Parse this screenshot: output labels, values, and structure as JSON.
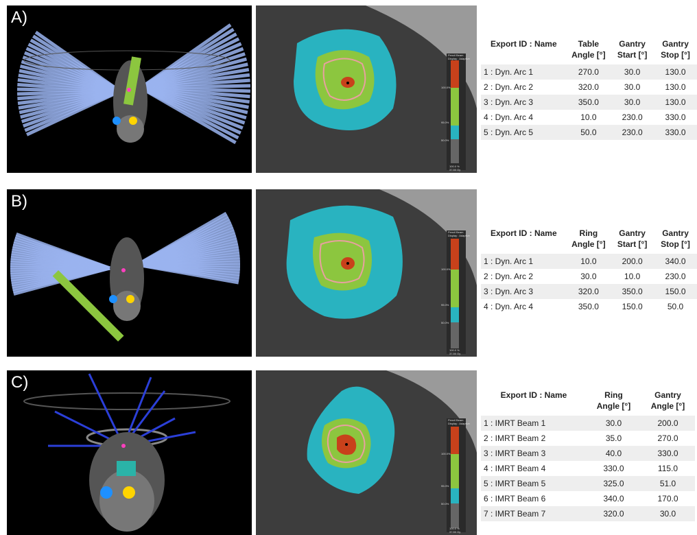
{
  "panels": [
    {
      "label": "A)",
      "table": {
        "headers": [
          {
            "line1": "Export ID : Name",
            "line2": ""
          },
          {
            "line1": "Table",
            "line2": "Angle [°]"
          },
          {
            "line1": "Gantry",
            "line2": "Start [°]"
          },
          {
            "line1": "Gantry",
            "line2": "Stop [°]"
          }
        ],
        "rows": [
          [
            "1 : Dyn. Arc 1",
            "270.0",
            "30.0",
            "130.0"
          ],
          [
            "2 : Dyn. Arc 2",
            "320.0",
            "30.0",
            "130.0"
          ],
          [
            "3 : Dyn. Arc 3",
            "350.0",
            "30.0",
            "130.0"
          ],
          [
            "4 : Dyn. Arc 4",
            "10.0",
            "230.0",
            "330.0"
          ],
          [
            "5 : Dyn. Arc 5",
            "50.0",
            "230.0",
            "330.0"
          ]
        ]
      }
    },
    {
      "label": "B)",
      "table": {
        "headers": [
          {
            "line1": "Export ID : Name",
            "line2": ""
          },
          {
            "line1": "Ring",
            "line2": "Angle [°]"
          },
          {
            "line1": "Gantry",
            "line2": "Start [°]"
          },
          {
            "line1": "Gantry",
            "line2": "Stop [°]"
          }
        ],
        "rows": [
          [
            "1 : Dyn. Arc 1",
            "10.0",
            "200.0",
            "340.0"
          ],
          [
            "2 : Dyn. Arc 2",
            "30.0",
            "10.0",
            "230.0"
          ],
          [
            "3 : Dyn. Arc 3",
            "320.0",
            "350.0",
            "150.0"
          ],
          [
            "4 : Dyn. Arc 4",
            "350.0",
            "150.0",
            "50.0"
          ]
        ]
      }
    },
    {
      "label": "C)",
      "table": {
        "headers": [
          {
            "line1": "Export ID : Name",
            "line2": ""
          },
          {
            "line1": "Ring",
            "line2": "Angle [°]"
          },
          {
            "line1": "Gantry",
            "line2": "Angle [°]"
          }
        ],
        "rows": [
          [
            "1 : IMRT Beam 1",
            "30.0",
            "200.0"
          ],
          [
            "2 : IMRT Beam 2",
            "35.0",
            "270.0"
          ],
          [
            "3 : IMRT Beam 3",
            "40.0",
            "330.0"
          ],
          [
            "4 : IMRT Beam 4",
            "330.0",
            "115.0"
          ],
          [
            "5 : IMRT Beam 5",
            "325.0",
            "51.0"
          ],
          [
            "6 : IMRT Beam 6",
            "340.0",
            "170.0"
          ],
          [
            "7 : IMRT Beam 7",
            "320.0",
            "30.0"
          ]
        ]
      }
    }
  ],
  "colorbar": {
    "title_lines": [
      "Pencil Beam",
      "Display : Adaptive"
    ],
    "ticks": [
      "100.0%",
      "95.0%",
      "50.0%"
    ],
    "bottom_lines": [
      "100.0 %",
      "37.50 Gy"
    ]
  },
  "colors": {
    "beam": "#9bb4f0",
    "outer_isodose": "#29b3c0",
    "mid_isodose": "#8cc63f",
    "inner_isodose": "#c8411b",
    "contour": "#e8a0a0"
  }
}
